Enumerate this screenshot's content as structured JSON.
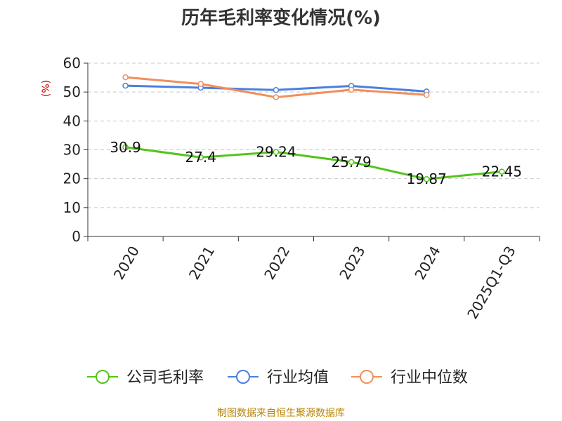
{
  "chart_data": {
    "type": "line",
    "title": "历年毛利率变化情况(%)",
    "ylabel": "(%)",
    "xlabel": "",
    "categories": [
      "2020",
      "2021",
      "2022",
      "2023",
      "2024",
      "2025Q1-Q3"
    ],
    "ylim": [
      0,
      60
    ],
    "yticks": [
      0,
      10,
      20,
      30,
      40,
      50,
      60
    ],
    "grid": true,
    "legend_position": "bottom",
    "series": [
      {
        "name": "公司毛利率",
        "color": "#52c41a",
        "values": [
          30.9,
          27.4,
          29.24,
          25.79,
          19.87,
          22.45
        ],
        "labels": [
          "30.9",
          "27.4",
          "29.24",
          "25.79",
          "19.87",
          "22.45"
        ]
      },
      {
        "name": "行业均值",
        "color": "#4a7fe0",
        "values": [
          52.2,
          51.5,
          50.7,
          52.1,
          50.2,
          null
        ]
      },
      {
        "name": "行业中位数",
        "color": "#f28e5a",
        "values": [
          55.1,
          52.8,
          48.2,
          50.8,
          49.0,
          null
        ]
      }
    ]
  },
  "source": "制图数据来自恒生聚源数据库"
}
